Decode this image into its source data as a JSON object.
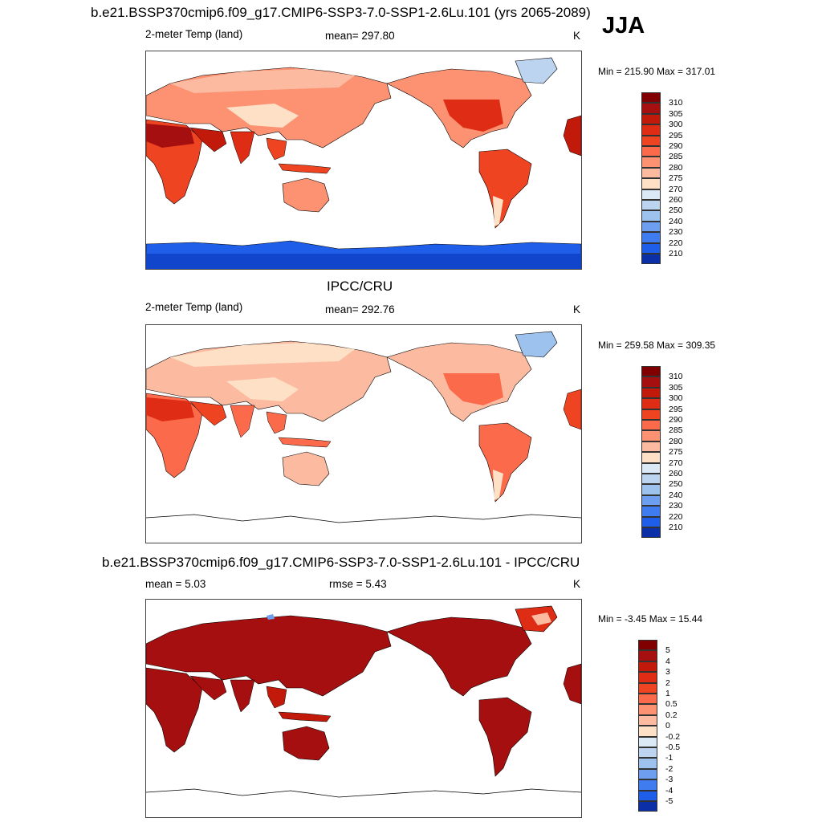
{
  "season": "JJA",
  "colors": {
    "warm": [
      "#fde0c5",
      "#fcbba1",
      "#fc9272",
      "#fb6a4a",
      "#ef4422",
      "#de2d14",
      "#c21a0a",
      "#a50f0f",
      "#800000"
    ],
    "cold": [
      "#dbe9f6",
      "#bcd4f0",
      "#9ec2ee",
      "#6d9ef0",
      "#3f7cf0",
      "#1f5ee8",
      "#1045cc",
      "#0a2fa6",
      "#000080"
    ],
    "ocean": "#ffffff",
    "coast": "#000000"
  },
  "chart_data": [
    {
      "type": "heatmap",
      "title": "b.e21.BSSP370cmip6.f09_g17.CMIP6-SSP3-7.0-SSP1-2.6Lu.101 (yrs 2065-2089)",
      "variable": "2-meter Temp (land)",
      "stat": "mean= 297.80",
      "units": "K",
      "minmax": "Min = 215.90 Max = 317.01",
      "colorbar_ticks": [
        "310",
        "305",
        "300",
        "295",
        "290",
        "285",
        "280",
        "275",
        "270",
        "260",
        "250",
        "240",
        "230",
        "220",
        "210"
      ],
      "mean": 297.8,
      "min": 215.9,
      "max": 317.01
    },
    {
      "type": "heatmap",
      "title": "IPCC/CRU",
      "variable": "2-meter Temp (land)",
      "stat": "mean= 292.76",
      "units": "K",
      "minmax": "Min = 259.58 Max = 309.35",
      "colorbar_ticks": [
        "310",
        "305",
        "300",
        "295",
        "290",
        "285",
        "280",
        "275",
        "270",
        "260",
        "250",
        "240",
        "230",
        "220",
        "210"
      ],
      "mean": 292.76,
      "min": 259.58,
      "max": 309.35
    },
    {
      "type": "heatmap",
      "title": "b.e21.BSSP370cmip6.f09_g17.CMIP6-SSP3-7.0-SSP1-2.6Lu.101 - IPCC/CRU",
      "stat_left": "mean =   5.03",
      "stat_mid": "rmse =   5.43",
      "units": "K",
      "minmax": "Min =  -3.45 Max =  15.44",
      "colorbar_ticks": [
        "5",
        "4",
        "3",
        "2",
        "1",
        "0.5",
        "0.2",
        "0",
        "-0.2",
        "-0.5",
        "-1",
        "-2",
        "-3",
        "-4",
        "-5"
      ],
      "mean": 5.03,
      "rmse": 5.43,
      "min": -3.45,
      "max": 15.44
    }
  ]
}
